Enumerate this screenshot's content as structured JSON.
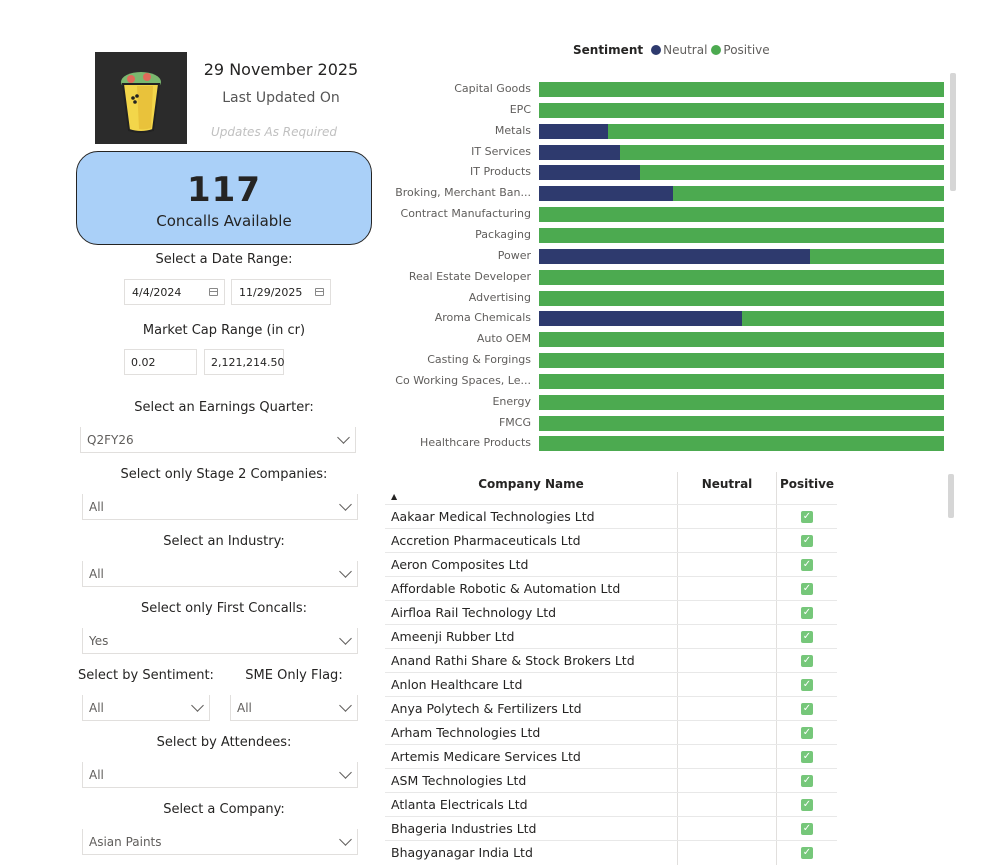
{
  "header": {
    "date": "29 November 2025",
    "last_updated": "Last Updated On",
    "updates_note": "Updates As Required",
    "logo_icon": "burrito-logo-icon"
  },
  "kpi": {
    "value": "117",
    "label": "Concalls Available"
  },
  "filters": {
    "date_range_label": "Select a Date Range:",
    "date_start": "4/4/2024",
    "date_end": "11/29/2025",
    "market_cap_label": "Market Cap Range (in cr)",
    "market_cap_min": "0.02",
    "market_cap_max": "2,121,214.50",
    "quarter_label": "Select an Earnings Quarter:",
    "quarter_value": "Q2FY26",
    "stage2_label": "Select only Stage 2 Companies:",
    "stage2_value": "All",
    "industry_label": "Select an Industry:",
    "industry_value": "All",
    "first_concalls_label": "Select only First Concalls:",
    "first_concalls_value": "Yes",
    "sentiment_label": "Select by Sentiment:",
    "sentiment_value": "All",
    "sme_label": "SME Only Flag:",
    "sme_value": "All",
    "attendees_label": "Select by Attendees:",
    "attendees_value": "All",
    "company_label": "Select a Company:",
    "company_value": "Asian Paints"
  },
  "chart_data": {
    "type": "bar",
    "orientation": "horizontal-stacked-100",
    "legend_title": "Sentiment",
    "legend_placement": "top",
    "series": [
      {
        "name": "Neutral",
        "color": "#2e3a6e"
      },
      {
        "name": "Positive",
        "color": "#4caa50"
      }
    ],
    "categories": [
      "Capital Goods",
      "EPC",
      "Metals",
      "IT Services",
      "IT Products",
      "Broking, Merchant Ban...",
      "Contract Manufacturing",
      "Packaging",
      "Power",
      "Real Estate Developer",
      "Advertising",
      "Aroma Chemicals",
      "Auto OEM",
      "Casting & Forgings",
      "Co Working Spaces, Le...",
      "Energy",
      "FMCG",
      "Healthcare Products"
    ],
    "neutral_share": [
      0,
      0,
      0.17,
      0.2,
      0.25,
      0.33,
      0,
      0,
      0.67,
      0,
      0,
      0.5,
      0,
      0,
      0,
      0,
      0,
      0
    ]
  },
  "table": {
    "columns": [
      "Company Name",
      "Neutral",
      "Positive"
    ],
    "rows": [
      {
        "name": "Aakaar Medical Technologies Ltd",
        "neutral": false,
        "positive": true
      },
      {
        "name": "Accretion Pharmaceuticals Ltd",
        "neutral": false,
        "positive": true
      },
      {
        "name": "Aeron Composites Ltd",
        "neutral": false,
        "positive": true
      },
      {
        "name": "Affordable Robotic & Automation Ltd",
        "neutral": false,
        "positive": true
      },
      {
        "name": "Airfloa Rail Technology Ltd",
        "neutral": false,
        "positive": true
      },
      {
        "name": "Ameenji Rubber Ltd",
        "neutral": false,
        "positive": true
      },
      {
        "name": "Anand Rathi Share & Stock Brokers Ltd",
        "neutral": false,
        "positive": true
      },
      {
        "name": "Anlon Healthcare Ltd",
        "neutral": false,
        "positive": true
      },
      {
        "name": "Anya Polytech & Fertilizers Ltd",
        "neutral": false,
        "positive": true
      },
      {
        "name": "Arham Technologies Ltd",
        "neutral": false,
        "positive": true
      },
      {
        "name": "Artemis Medicare Services Ltd",
        "neutral": false,
        "positive": true
      },
      {
        "name": "ASM Technologies Ltd",
        "neutral": false,
        "positive": true
      },
      {
        "name": "Atlanta Electricals Ltd",
        "neutral": false,
        "positive": true
      },
      {
        "name": "Bhageria Industries Ltd",
        "neutral": false,
        "positive": true
      },
      {
        "name": "Bhagyanagar India Ltd",
        "neutral": false,
        "positive": true
      }
    ]
  }
}
